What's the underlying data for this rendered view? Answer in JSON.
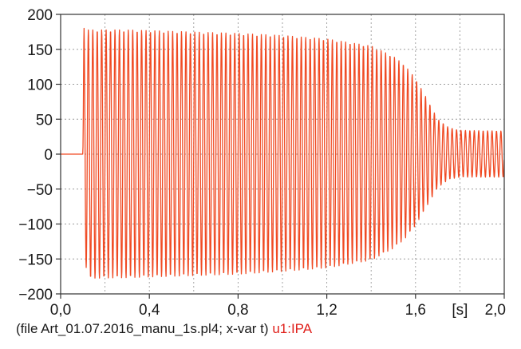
{
  "chart_data": {
    "type": "line",
    "x_axis": {
      "min": 0.0,
      "max": 2.0,
      "unit_label": "[s]",
      "ticks": [
        {
          "value": 0.0,
          "label": "0,0"
        },
        {
          "value": 0.4,
          "label": "0,4"
        },
        {
          "value": 0.8,
          "label": "0,8"
        },
        {
          "value": 1.2,
          "label": "1,2"
        },
        {
          "value": 1.6,
          "label": "1,6"
        },
        {
          "value": 2.0,
          "label": "2,0"
        }
      ],
      "minor_gridlines": [
        0.2,
        0.6,
        1.0,
        1.4,
        1.8
      ]
    },
    "y_axis": {
      "min": -200,
      "max": 200,
      "ticks": [
        {
          "value": 200,
          "label": "200"
        },
        {
          "value": 150,
          "label": "150"
        },
        {
          "value": 100,
          "label": "100"
        },
        {
          "value": 50,
          "label": "50"
        },
        {
          "value": 0,
          "label": "0"
        },
        {
          "value": -50,
          "label": "−50"
        },
        {
          "value": -100,
          "label": "−100"
        },
        {
          "value": -150,
          "label": "−150"
        },
        {
          "value": -200,
          "label": "−200"
        }
      ]
    },
    "grid": true,
    "series": [
      {
        "name": "u1:IPA",
        "color": "#f04a23",
        "frequency_hz": 50,
        "envelope": [
          {
            "t": 0.0,
            "upper": 0,
            "lower": 0
          },
          {
            "t": 0.1,
            "upper": 0,
            "lower": 0
          },
          {
            "t": 0.105,
            "upper": 183,
            "lower": -130
          },
          {
            "t": 0.12,
            "upper": 178,
            "lower": -178
          },
          {
            "t": 0.3,
            "upper": 178,
            "lower": -177
          },
          {
            "t": 0.5,
            "upper": 176,
            "lower": -175
          },
          {
            "t": 0.8,
            "upper": 173,
            "lower": -172
          },
          {
            "t": 1.0,
            "upper": 170,
            "lower": -168
          },
          {
            "t": 1.2,
            "upper": 165,
            "lower": -163
          },
          {
            "t": 1.4,
            "upper": 155,
            "lower": -152
          },
          {
            "t": 1.5,
            "upper": 140,
            "lower": -135
          },
          {
            "t": 1.55,
            "upper": 128,
            "lower": -122
          },
          {
            "t": 1.6,
            "upper": 108,
            "lower": -102
          },
          {
            "t": 1.65,
            "upper": 80,
            "lower": -75
          },
          {
            "t": 1.7,
            "upper": 50,
            "lower": -48
          },
          {
            "t": 1.75,
            "upper": 38,
            "lower": -36
          },
          {
            "t": 1.8,
            "upper": 34,
            "lower": -33
          },
          {
            "t": 2.0,
            "upper": 33,
            "lower": -33
          }
        ]
      }
    ]
  },
  "footer": {
    "file_info": "(file Art_01.07.2016_manu_1s.pl4; x-var t)",
    "series_label": "u1:IPA"
  }
}
